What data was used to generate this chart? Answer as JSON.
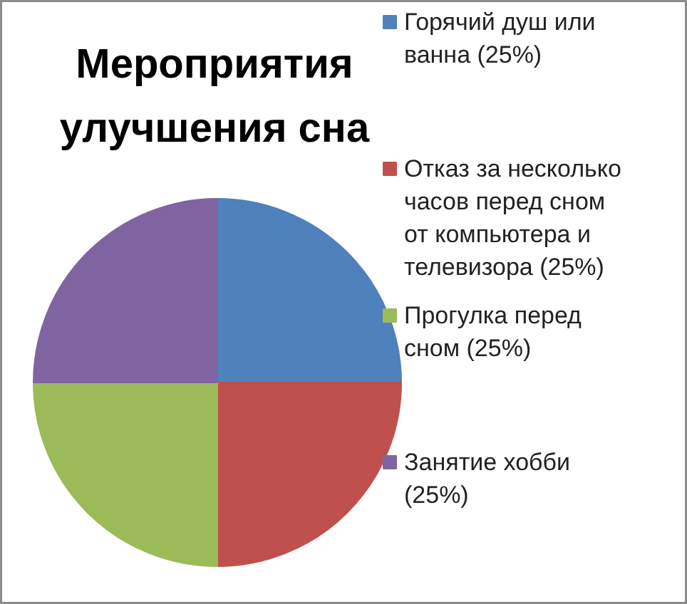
{
  "chart_data": {
    "type": "pie",
    "title": "Мероприятия улучшения сна",
    "categories": [
      "Горячий душ или ванна (25%)",
      "Отказ за несколько часов перед сном от компьютера и телевизора (25%)",
      "Прогулка перед сном (25%)",
      "Занятие хобби (25%)"
    ],
    "values": [
      25,
      25,
      25,
      25
    ],
    "colors": [
      "#4f81bd",
      "#c0504d",
      "#9bbb59",
      "#8064a2"
    ],
    "legend": "right"
  }
}
